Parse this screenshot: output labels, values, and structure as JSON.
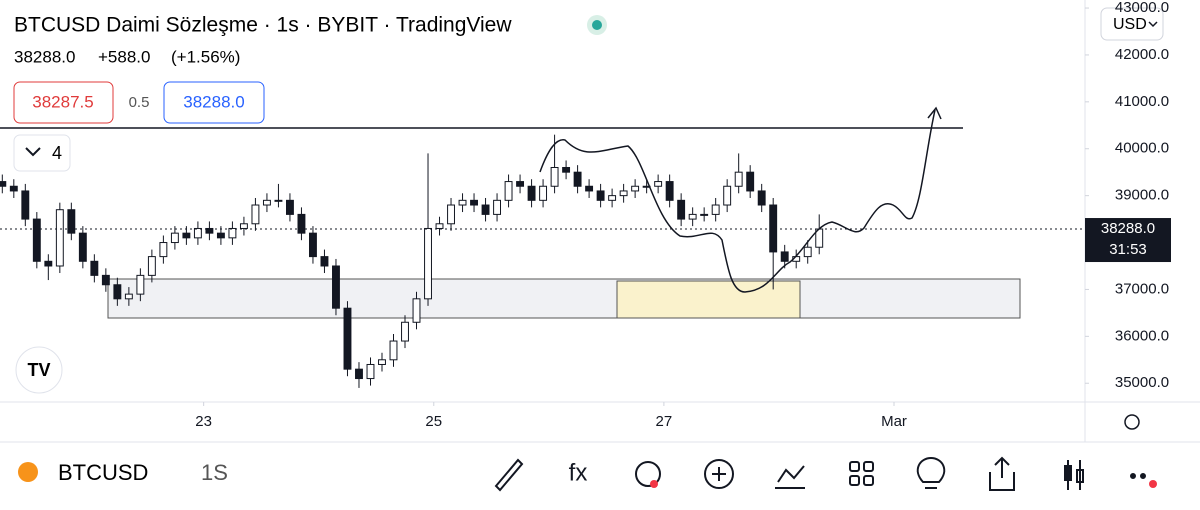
{
  "header": {
    "title": "BTCUSD Daimi Sözleşme · 1s · BYBIT · TradingView",
    "last": "38288.0",
    "change": "+588.0",
    "change_pct": "(+1.56%)",
    "bid": "38287.5",
    "spread": "0.5",
    "ask": "38288.0",
    "indicators": "4",
    "currency": "USD",
    "price_tag": "38288.0",
    "countdown": "31:53"
  },
  "toolbar": {
    "symbol": "BTCUSD",
    "interval": "1S"
  },
  "chart_data": {
    "type": "candlestick",
    "up_color": "#ffffff",
    "down_color": "#131722",
    "wick_color": "#131722",
    "x": [
      21.25,
      21.35,
      21.45,
      21.55,
      21.65,
      21.75,
      21.85,
      21.95,
      22.05,
      22.15,
      22.25,
      22.35,
      22.45,
      22.55,
      22.65,
      22.75,
      22.85,
      22.95,
      23.05,
      23.15,
      23.25,
      23.35,
      23.45,
      23.55,
      23.65,
      23.75,
      23.85,
      23.95,
      24.05,
      24.15,
      24.25,
      24.35,
      24.45,
      24.55,
      24.65,
      24.75,
      24.85,
      24.95,
      25.05,
      25.15,
      25.25,
      25.35,
      25.45,
      25.55,
      25.65,
      25.75,
      25.85,
      25.95,
      26.05,
      26.15,
      26.25,
      26.35,
      26.45,
      26.55,
      26.65,
      26.75,
      26.85,
      26.95,
      27.05,
      27.15,
      27.25,
      27.35,
      27.45,
      27.55,
      27.65,
      27.75,
      27.85,
      27.95,
      28.05,
      28.15,
      28.25,
      28.35
    ],
    "open": [
      39300,
      39200,
      39100,
      38500,
      37600,
      37500,
      38700,
      38200,
      37600,
      37300,
      37100,
      36800,
      36900,
      37300,
      37700,
      38000,
      38200,
      38100,
      38300,
      38200,
      38100,
      38300,
      38400,
      38800,
      38900,
      38900,
      38600,
      38200,
      37700,
      37500,
      36600,
      35300,
      35100,
      35400,
      35500,
      35900,
      36300,
      36800,
      38300,
      38400,
      38800,
      38900,
      38800,
      38600,
      38900,
      39300,
      39200,
      38900,
      39200,
      39600,
      39500,
      39200,
      39100,
      38900,
      39000,
      39100,
      39200,
      39200,
      39300,
      38900,
      38500,
      38600,
      38600,
      38800,
      39200,
      39500,
      39100,
      38800,
      37800,
      37600,
      37700,
      37900
    ],
    "high": [
      39450,
      39350,
      39250,
      38650,
      37750,
      38850,
      38850,
      38350,
      37750,
      37450,
      37250,
      37050,
      37450,
      37850,
      38150,
      38350,
      38350,
      38450,
      38450,
      38350,
      38450,
      38550,
      38950,
      39050,
      39250,
      39050,
      38750,
      38350,
      37850,
      37650,
      36750,
      35450,
      35550,
      35650,
      36050,
      36450,
      36950,
      39900,
      38550,
      38950,
      39050,
      39050,
      38950,
      39050,
      39450,
      39450,
      39350,
      39350,
      40300,
      39750,
      39650,
      39350,
      39250,
      39150,
      39250,
      39350,
      39350,
      39450,
      39450,
      39050,
      38750,
      38750,
      38950,
      39350,
      39900,
      39650,
      39250,
      38950,
      37950,
      37850,
      38050,
      38600
    ],
    "low": [
      39050,
      38950,
      38350,
      37450,
      37200,
      37350,
      38050,
      37450,
      37150,
      36950,
      36650,
      36650,
      36750,
      37150,
      37550,
      37850,
      37950,
      37950,
      38050,
      37950,
      37950,
      38150,
      38250,
      38650,
      38750,
      38450,
      38050,
      37550,
      37350,
      36450,
      35150,
      34900,
      34950,
      35250,
      35350,
      35750,
      36150,
      36650,
      38150,
      38250,
      38650,
      38650,
      38450,
      38450,
      38750,
      39050,
      38750,
      38750,
      39050,
      39350,
      39050,
      38950,
      38750,
      38750,
      38850,
      38950,
      39050,
      39050,
      38750,
      38350,
      38350,
      38450,
      38450,
      38650,
      39050,
      38950,
      38650,
      37000,
      37450,
      37450,
      37550,
      37750
    ],
    "close": [
      39200,
      39100,
      38500,
      37600,
      37500,
      38700,
      38200,
      37600,
      37300,
      37100,
      36800,
      36900,
      37300,
      37700,
      38000,
      38200,
      38100,
      38300,
      38200,
      38100,
      38300,
      38400,
      38800,
      38900,
      38900,
      38600,
      38200,
      37700,
      37500,
      36600,
      35300,
      35100,
      35400,
      35500,
      35900,
      36300,
      36800,
      38300,
      38400,
      38800,
      38900,
      38800,
      38600,
      38900,
      39300,
      39200,
      38900,
      39200,
      39600,
      39500,
      39200,
      39100,
      38900,
      39000,
      39100,
      39200,
      39200,
      39300,
      38900,
      38500,
      38600,
      38600,
      38800,
      39200,
      39500,
      39100,
      38800,
      37800,
      37600,
      37700,
      37900,
      38288
    ],
    "xlim": [
      21.23,
      30.66
    ],
    "xticks": [
      {
        "value": 23,
        "label": "23"
      },
      {
        "value": 25,
        "label": "25"
      },
      {
        "value": 27,
        "label": "27"
      },
      {
        "value": 29,
        "label": "Mar"
      }
    ],
    "ylim": [
      34600,
      43150
    ],
    "yticks": [
      {
        "value": 43000,
        "label": "43000.0"
      },
      {
        "value": 42000,
        "label": "42000.0"
      },
      {
        "value": 41000,
        "label": "41000.0"
      },
      {
        "value": 40000,
        "label": "40000.0"
      },
      {
        "value": 39000,
        "label": "39000.0"
      },
      {
        "value": 38000,
        "label": "38000.0"
      },
      {
        "value": 37000,
        "label": "37000.0"
      },
      {
        "value": 36000,
        "label": "36000.0"
      },
      {
        "value": 35000,
        "label": "35000.0"
      }
    ],
    "current_price": 38288
  }
}
